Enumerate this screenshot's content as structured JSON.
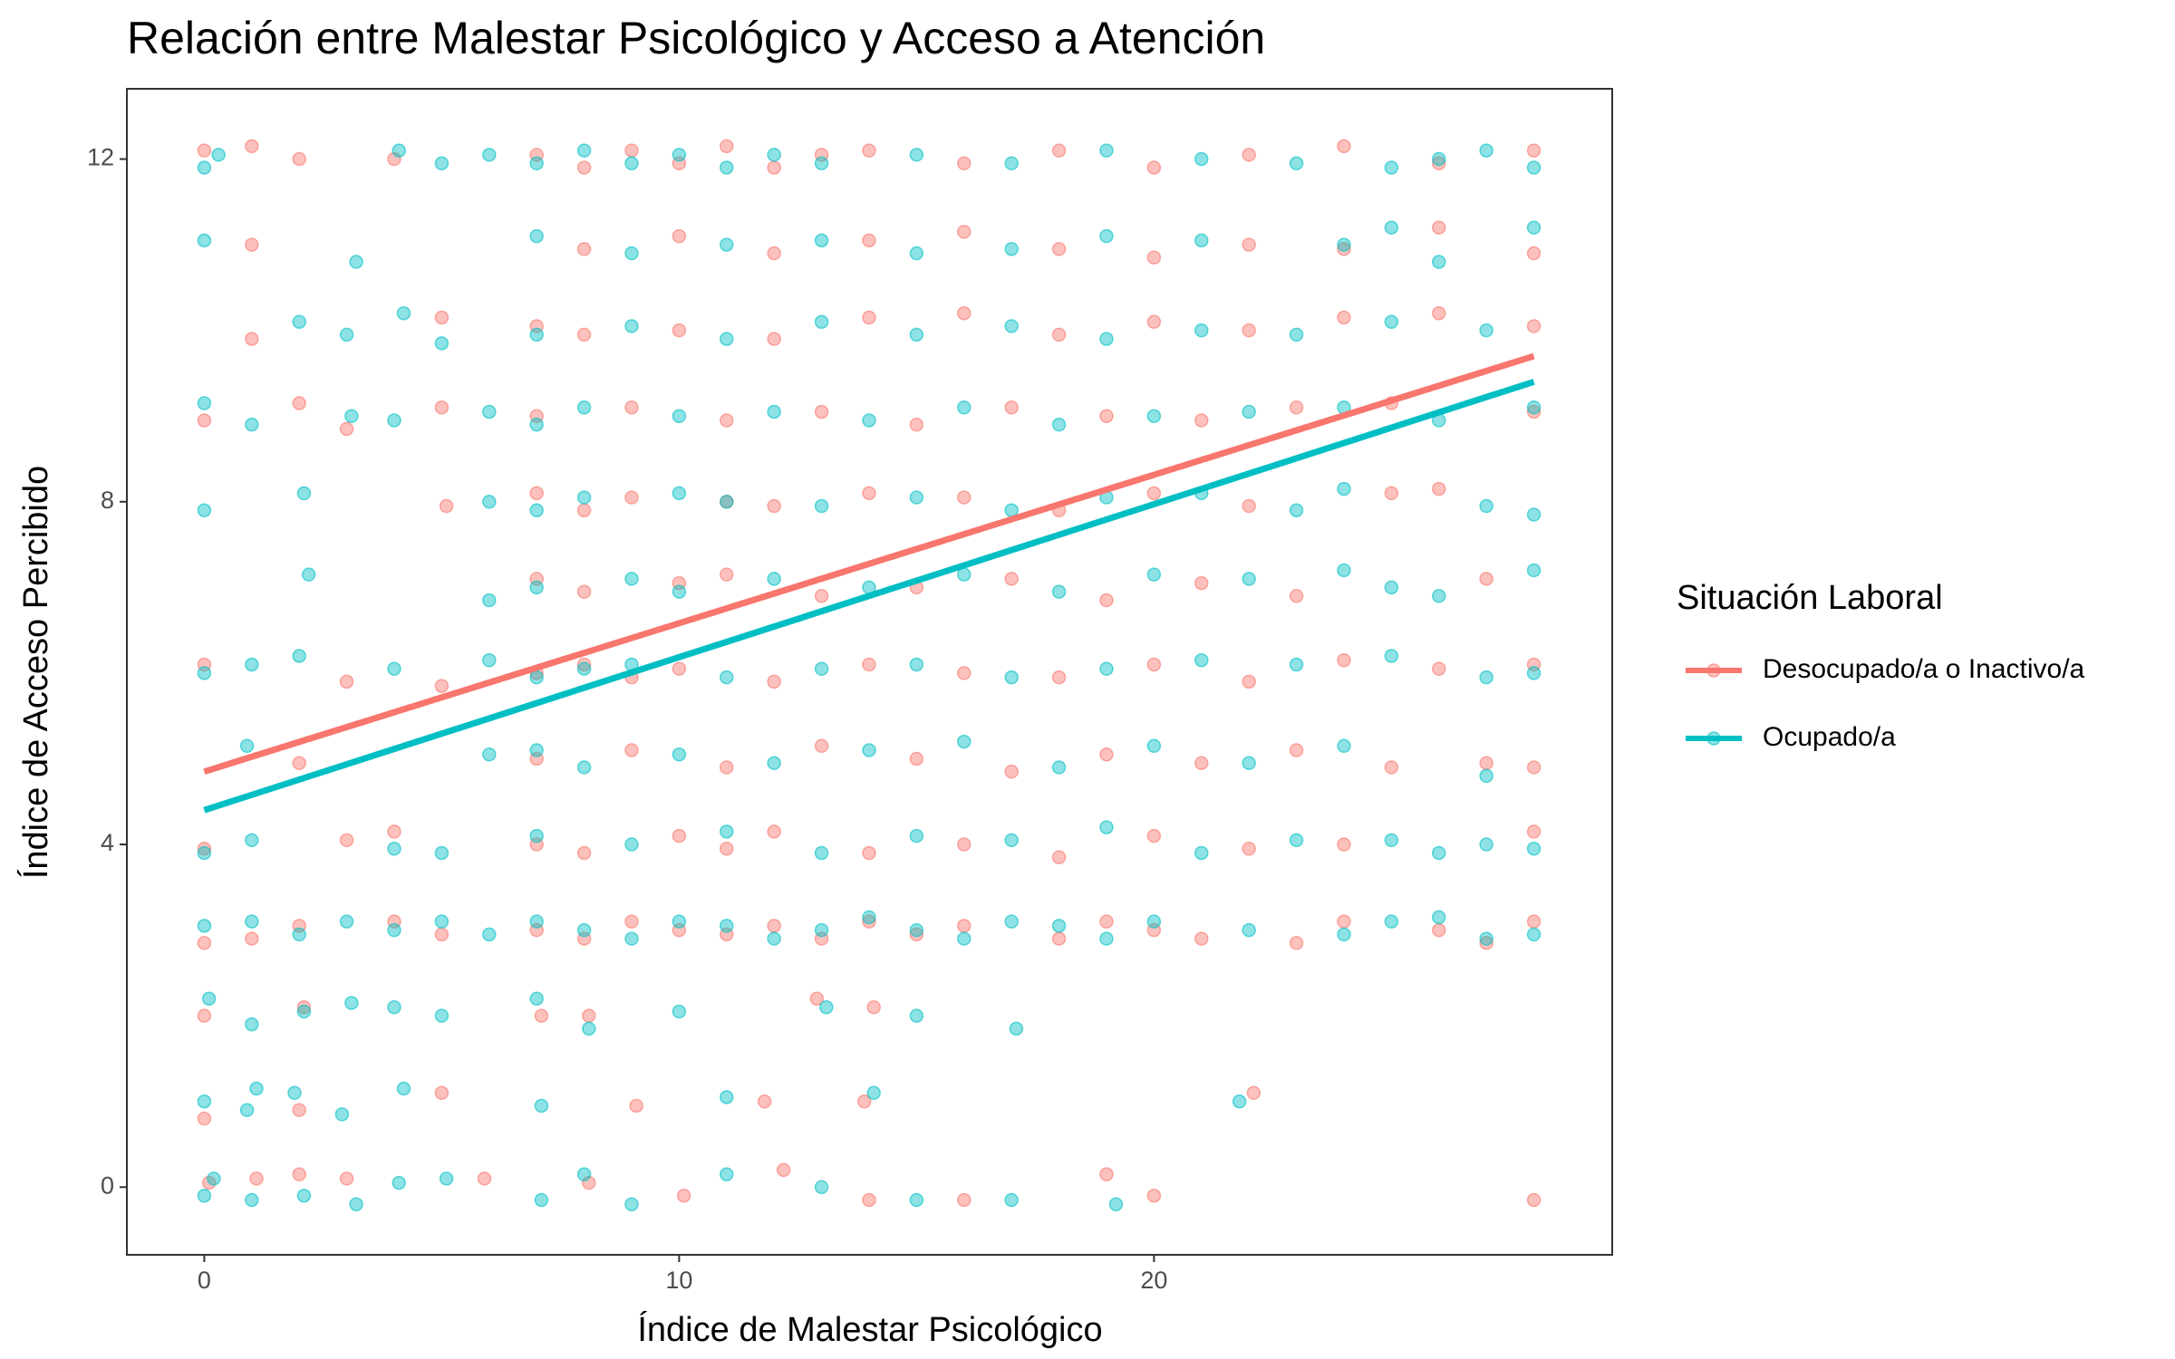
{
  "chart_data": {
    "type": "scatter",
    "title": "Relación entre Malestar Psicológico y Acceso a Atención",
    "x_label": "Índice de Malestar Psicológico",
    "y_label": "Índice de Acceso Percibido",
    "legend_title": "Situación Laboral",
    "legend_position": "right",
    "grid": true,
    "xlim": [
      -1.63,
      29.65
    ],
    "ylim": [
      -0.79,
      12.82
    ],
    "xticks": [
      0,
      10,
      20
    ],
    "yticks": [
      0,
      4,
      8,
      12
    ],
    "series": [
      {
        "name": "Desocupado/a o Inactivo/a",
        "color": "#F8766D",
        "x": [
          0.1,
          1.1,
          2.0,
          3.0,
          5.9,
          8.1,
          10.1,
          12.2,
          14,
          16,
          19,
          20,
          28,
          0,
          2,
          5,
          9.1,
          11.8,
          13.9,
          22.1,
          0,
          2.1,
          7.1,
          8.1,
          12.9,
          14.1,
          0,
          1,
          2,
          4,
          5,
          7,
          8,
          9,
          10,
          11,
          12,
          13,
          14,
          15,
          16,
          18,
          19,
          20,
          21,
          23,
          24,
          26,
          27,
          28,
          0,
          3,
          4,
          7,
          8,
          10,
          11,
          12,
          14,
          16,
          18,
          20,
          22,
          24,
          28,
          2,
          7,
          9,
          11,
          13,
          15,
          17,
          19,
          21,
          23,
          25,
          27,
          28,
          0,
          3,
          5,
          7,
          8,
          9,
          10,
          12,
          14,
          16,
          18,
          20,
          22,
          24,
          26,
          28,
          7,
          8,
          10,
          11,
          13,
          15,
          17,
          19,
          21,
          23,
          27,
          5.1,
          7,
          8,
          9,
          11,
          12,
          14,
          16,
          18,
          20,
          22,
          25,
          26,
          0,
          2,
          3,
          5,
          7,
          9,
          11,
          13,
          15,
          17,
          19,
          21,
          23,
          25,
          28,
          1,
          5,
          7,
          8,
          10,
          12,
          14,
          16,
          18,
          20,
          22,
          24,
          26,
          28,
          1,
          8,
          10,
          12,
          14,
          16,
          18,
          20,
          22,
          24,
          26,
          28,
          0,
          1,
          2,
          4,
          7,
          8,
          9,
          10,
          11,
          12,
          13,
          14,
          16,
          18,
          20,
          22,
          24,
          26,
          28
        ],
        "y": [
          0.05,
          0.1,
          0.15,
          0.1,
          0.1,
          0.05,
          -0.1,
          0.2,
          -0.15,
          -0.15,
          0.15,
          -0.1,
          -0.15,
          0.8,
          0.9,
          1.1,
          0.95,
          1.0,
          1.0,
          1.1,
          2.0,
          2.1,
          2.0,
          2.0,
          2.2,
          2.1,
          2.85,
          2.9,
          3.05,
          3.1,
          2.95,
          3.0,
          2.9,
          3.1,
          3.0,
          2.95,
          3.05,
          2.9,
          3.1,
          2.95,
          3.05,
          2.9,
          3.1,
          3.0,
          2.9,
          2.85,
          3.1,
          3.0,
          2.85,
          3.1,
          3.95,
          4.05,
          4.15,
          4.0,
          3.9,
          4.1,
          3.95,
          4.15,
          3.9,
          4.0,
          3.85,
          4.1,
          3.95,
          4.0,
          4.15,
          4.95,
          5.0,
          5.1,
          4.9,
          5.15,
          5.0,
          4.85,
          5.05,
          4.95,
          5.1,
          4.9,
          4.95,
          4.9,
          6.1,
          5.9,
          5.85,
          6.0,
          6.1,
          5.95,
          6.05,
          5.9,
          6.1,
          6.0,
          5.95,
          6.1,
          5.9,
          6.15,
          6.05,
          6.1,
          7.1,
          6.95,
          7.05,
          7.15,
          6.9,
          7.0,
          7.1,
          6.85,
          7.05,
          6.9,
          7.1,
          7.95,
          8.1,
          7.9,
          8.05,
          8.0,
          7.95,
          8.1,
          8.05,
          7.9,
          8.1,
          7.95,
          8.1,
          8.15,
          8.95,
          9.15,
          8.85,
          9.1,
          9.0,
          9.1,
          8.95,
          9.05,
          8.9,
          9.1,
          9.0,
          8.95,
          9.1,
          9.15,
          9.05,
          9.9,
          10.15,
          10.05,
          9.95,
          10.0,
          9.9,
          10.15,
          10.2,
          9.95,
          10.1,
          10.0,
          10.15,
          10.2,
          10.05,
          11.0,
          10.95,
          11.1,
          10.9,
          11.05,
          11.15,
          10.95,
          10.85,
          11.0,
          10.95,
          11.2,
          10.9,
          12.1,
          12.15,
          12.0,
          12.0,
          12.05,
          11.9,
          12.1,
          11.95,
          12.15,
          11.9,
          12.05,
          12.1,
          11.95,
          12.1,
          11.9,
          12.05,
          12.15,
          11.95,
          12.1
        ],
        "trend": {
          "x": [
            0,
            28
          ],
          "y": [
            4.85,
            9.7
          ]
        }
      },
      {
        "name": "Ocupado/a",
        "color": "#00BFC4",
        "x": [
          0,
          0.2,
          1,
          2.1,
          3.2,
          4.1,
          5.1,
          7.1,
          8,
          9,
          11,
          13,
          15,
          17,
          19.2,
          0,
          0.9,
          1.1,
          1.9,
          2.9,
          4.2,
          7.1,
          11,
          14.1,
          21.8,
          0.1,
          1,
          2.1,
          3.1,
          4,
          5,
          7,
          8.1,
          10,
          13.1,
          15,
          17.1,
          0,
          1,
          2,
          3,
          4,
          5,
          6,
          7,
          8,
          9,
          10,
          11,
          12,
          13,
          14,
          15,
          16,
          17,
          18,
          19,
          20,
          22,
          24,
          25,
          26,
          27,
          28,
          0,
          1,
          4,
          5,
          7,
          9,
          11,
          13,
          15,
          17,
          19,
          21,
          23,
          25,
          26,
          27,
          28,
          0.9,
          6,
          7,
          8,
          10,
          12,
          14,
          16,
          18,
          20,
          22,
          24,
          27,
          0,
          1,
          2,
          4,
          6,
          7,
          8,
          9,
          11,
          13,
          15,
          17,
          19,
          21,
          23,
          25,
          27,
          28,
          2.2,
          6,
          7,
          9,
          10,
          12,
          14,
          16,
          18,
          20,
          22,
          24,
          25,
          26,
          28,
          0,
          2.1,
          6,
          7,
          8,
          10,
          11,
          13,
          15,
          17,
          19,
          21,
          23,
          24,
          27,
          28,
          0,
          1,
          3.1,
          4,
          6,
          7,
          8,
          10,
          12,
          14,
          16,
          18,
          20,
          22,
          24,
          26,
          28,
          2,
          3,
          4.2,
          5,
          7,
          9,
          11,
          13,
          15,
          17,
          19,
          21,
          23,
          25,
          27,
          0,
          3.2,
          7,
          9,
          11,
          13,
          15,
          17,
          19,
          21,
          24,
          25,
          26,
          28,
          0,
          0.3,
          4.1,
          5,
          6,
          7,
          8,
          9,
          10,
          11,
          12,
          13,
          15,
          17,
          19,
          21,
          23,
          25,
          26,
          27,
          28
        ],
        "y": [
          -0.1,
          0.1,
          -0.15,
          -0.1,
          -0.2,
          0.05,
          0.1,
          -0.15,
          0.15,
          -0.2,
          0.15,
          0.0,
          -0.15,
          -0.15,
          -0.2,
          1.0,
          0.9,
          1.15,
          1.1,
          0.85,
          1.15,
          0.95,
          1.05,
          1.1,
          1.0,
          2.2,
          1.9,
          2.05,
          2.15,
          2.1,
          2.0,
          2.2,
          1.85,
          2.05,
          2.1,
          2.0,
          1.85,
          3.05,
          3.1,
          2.95,
          3.1,
          3.0,
          3.1,
          2.95,
          3.1,
          3.0,
          2.9,
          3.1,
          3.05,
          2.9,
          3.0,
          3.15,
          3.0,
          2.9,
          3.1,
          3.05,
          2.9,
          3.1,
          3.0,
          2.95,
          3.1,
          3.15,
          2.9,
          2.95,
          3.9,
          4.05,
          3.95,
          3.9,
          4.1,
          4.0,
          4.15,
          3.9,
          4.1,
          4.05,
          4.2,
          3.9,
          4.05,
          4.05,
          3.9,
          4.0,
          3.95,
          5.15,
          5.05,
          5.1,
          4.9,
          5.05,
          4.95,
          5.1,
          5.2,
          4.9,
          5.15,
          4.95,
          5.15,
          4.8,
          6.0,
          6.1,
          6.2,
          6.05,
          6.15,
          5.95,
          6.05,
          6.1,
          5.95,
          6.05,
          6.1,
          5.95,
          6.05,
          6.15,
          6.1,
          6.2,
          5.95,
          6.0,
          7.15,
          6.85,
          7.0,
          7.1,
          6.95,
          7.1,
          7.0,
          7.15,
          6.95,
          7.15,
          7.1,
          7.2,
          7.0,
          6.9,
          7.2,
          7.9,
          8.1,
          8.0,
          7.9,
          8.05,
          8.1,
          8.0,
          7.95,
          8.05,
          7.9,
          8.05,
          8.1,
          7.9,
          8.15,
          7.95,
          7.85,
          9.15,
          8.9,
          9.0,
          8.95,
          9.05,
          8.9,
          9.1,
          9.0,
          9.05,
          8.95,
          9.1,
          8.9,
          9.0,
          9.05,
          9.1,
          8.95,
          9.1,
          10.1,
          9.95,
          10.2,
          9.85,
          9.95,
          10.05,
          9.9,
          10.1,
          9.95,
          10.05,
          9.9,
          10.0,
          9.95,
          10.1,
          10.0,
          11.05,
          10.8,
          11.1,
          10.9,
          11.0,
          11.05,
          10.9,
          10.95,
          11.1,
          11.05,
          11.0,
          11.2,
          10.8,
          11.2,
          11.9,
          12.05,
          12.1,
          11.95,
          12.05,
          11.95,
          12.1,
          11.95,
          12.05,
          11.9,
          12.05,
          11.95,
          12.05,
          11.95,
          12.1,
          12.0,
          11.95,
          11.9,
          12.0,
          12.1,
          11.9
        ],
        "trend": {
          "x": [
            0,
            28
          ],
          "y": [
            4.4,
            9.4
          ]
        }
      }
    ]
  }
}
